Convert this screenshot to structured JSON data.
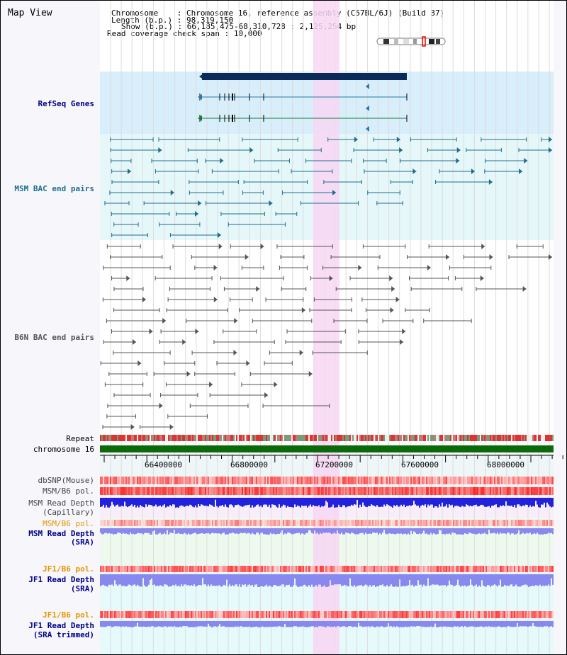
{
  "header": {
    "title": "Map View",
    "chromosome_key": "Chromosome",
    "chromosome_val": "Chromosome 16, reference assembly (C57BL/6J) (Build 37)",
    "length_key": "Length (b.p.)",
    "length_val": "98,319,150",
    "show_key": "Show (b.p.)",
    "show_val": "66,185,475-68,310,728 : 2,125,254 bp",
    "coverage_key": "Read coverage check span",
    "coverage_val": "10,000"
  },
  "tracks": {
    "refseq": "RefSeq Genes",
    "msm_bac": "MSM BAC end pairs",
    "b6n_bac": "B6N BAC end pairs",
    "repeat": "Repeat",
    "chromosome": "chromosome 16",
    "dbsnp": "dbSNP(Mouse)",
    "msm_b6_pol": "MSM/B6 pol.",
    "msm_depth_cap_1": "MSM Read Depth",
    "msm_depth_cap_2": "(Capillary)",
    "msm_b6_pol_2": "MSM/B6 pol.",
    "msm_depth_sra_1": "MSM Read Depth",
    "msm_depth_sra_2": "(SRA)",
    "jf1_b6_pol": "JF1/B6 pol.",
    "jf1_depth_sra_1": "JF1 Read Depth",
    "jf1_depth_sra_2": "(SRA)",
    "jf1_b6_pol_2": "JF1/B6 pol.",
    "jf1_depth_trim_1": "JF1 Read Depth",
    "jf1_depth_trim_2": "(SRA trimmed)"
  },
  "axis": {
    "ticks": [
      "66400000",
      "66800000",
      "67200000",
      "67600000",
      "68000000"
    ]
  },
  "colors": {
    "refseq_bg": "#d8eefa",
    "msm_bg": "#e6f7fa",
    "highlight": "#f7d7f2",
    "gene_dark": "#0a2a5a",
    "msm_feature": "#1e6e8e",
    "b6n_feature": "#555555",
    "chromosome_bar": "#0a6a0a",
    "depth_blue": "#2222dd",
    "depth_light_blue": "#8888ee",
    "label_blue": "#00008b",
    "label_teal": "#1e6e8e",
    "label_orange": "#e69500"
  }
}
